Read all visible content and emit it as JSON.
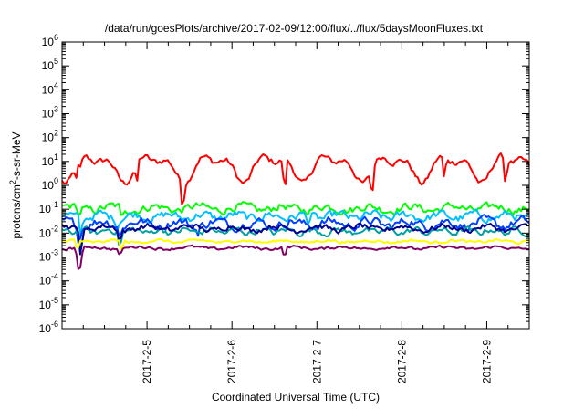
{
  "chart_data": {
    "type": "line",
    "title": "/data/run/goesPlots/archive/2017-02-09/12:00/flux/../flux/5daysMoonFluxes.txt",
    "xlabel": "Coordinated Universal Time (UTC)",
    "ylabel_parts": [
      "protons/cm",
      "2",
      "-s-sr-MeV"
    ],
    "yscale": "log",
    "ylim_exp": [
      -6,
      6
    ],
    "y_tick_base": "10",
    "y_tick_exponents": [
      "-6",
      "-5",
      "-4",
      "-3",
      "-2",
      "-1",
      "0",
      "1",
      "2",
      "3",
      "4",
      "5",
      "6"
    ],
    "xlim_days": [
      4.0,
      9.5
    ],
    "x_ticks": [
      {
        "day": 5,
        "label": "2017-2-5"
      },
      {
        "day": 6,
        "label": "2017-2-6"
      },
      {
        "day": 7,
        "label": "2017-2-7"
      },
      {
        "day": 8,
        "label": "2017-2-8"
      },
      {
        "day": 9,
        "label": "2017-2-9"
      }
    ],
    "grid": false,
    "legend": "none",
    "series": [
      {
        "color": "#ff0000",
        "base": 6.0,
        "noise": 0.22,
        "dips": [
          [
            4.17,
            0.6
          ],
          [
            4.22,
            0.5
          ],
          [
            4.88,
            0.9
          ],
          [
            5.42,
            1.2
          ],
          [
            6.62,
            1.5
          ],
          [
            7.65,
            1.3
          ],
          [
            8.5,
            1.0
          ],
          [
            9.22,
            1.2
          ]
        ],
        "waves": [
          [
            0.7,
            0.45,
            0.0
          ],
          [
            0.35,
            0.25,
            1.2
          ]
        ]
      },
      {
        "color": "#00ff00",
        "base": 0.11,
        "noise": 0.28,
        "dips": [
          [
            4.2,
            0.4
          ],
          [
            4.7,
            0.6
          ]
        ],
        "waves": [
          [
            0.5,
            0.1,
            0.3
          ]
        ]
      },
      {
        "color": "#00c0ff",
        "base": 0.05,
        "noise": 0.3,
        "dips": [
          [
            4.22,
            0.9
          ],
          [
            4.65,
            0.5
          ],
          [
            6.9,
            0.4
          ]
        ],
        "waves": [
          [
            0.4,
            0.1,
            0.8
          ]
        ]
      },
      {
        "color": "#0040ff",
        "base": 0.025,
        "noise": 0.32,
        "dips": [
          [
            4.2,
            0.9
          ],
          [
            4.68,
            0.6
          ],
          [
            5.6,
            0.4
          ]
        ],
        "waves": [
          [
            0.45,
            0.12,
            2.0
          ]
        ]
      },
      {
        "color": "#00a0a0",
        "base": 0.012,
        "noise": 0.22,
        "dips": [
          [
            4.22,
            1.0
          ],
          [
            4.68,
            0.7
          ]
        ],
        "waves": [
          [
            0.3,
            0.08,
            0.5
          ]
        ]
      },
      {
        "color": "#000090",
        "base": 0.016,
        "noise": 0.2,
        "dips": [
          [
            4.22,
            1.1
          ],
          [
            4.68,
            0.6
          ]
        ],
        "waves": [
          [
            0.5,
            0.1,
            1.5
          ]
        ]
      },
      {
        "color": "#ffff00",
        "base": 0.0045,
        "noise": 0.1,
        "dips": [
          [
            4.18,
            0.5
          ],
          [
            4.7,
            0.5
          ]
        ],
        "waves": [
          [
            0.5,
            0.05,
            0.0
          ]
        ]
      },
      {
        "color": "#800060",
        "base": 0.0024,
        "noise": 0.1,
        "dips": [
          [
            4.19,
            0.9
          ],
          [
            4.22,
            0.9
          ],
          [
            4.68,
            0.4
          ],
          [
            6.62,
            0.5
          ]
        ],
        "waves": [
          [
            0.6,
            0.05,
            0.4
          ]
        ]
      }
    ]
  }
}
